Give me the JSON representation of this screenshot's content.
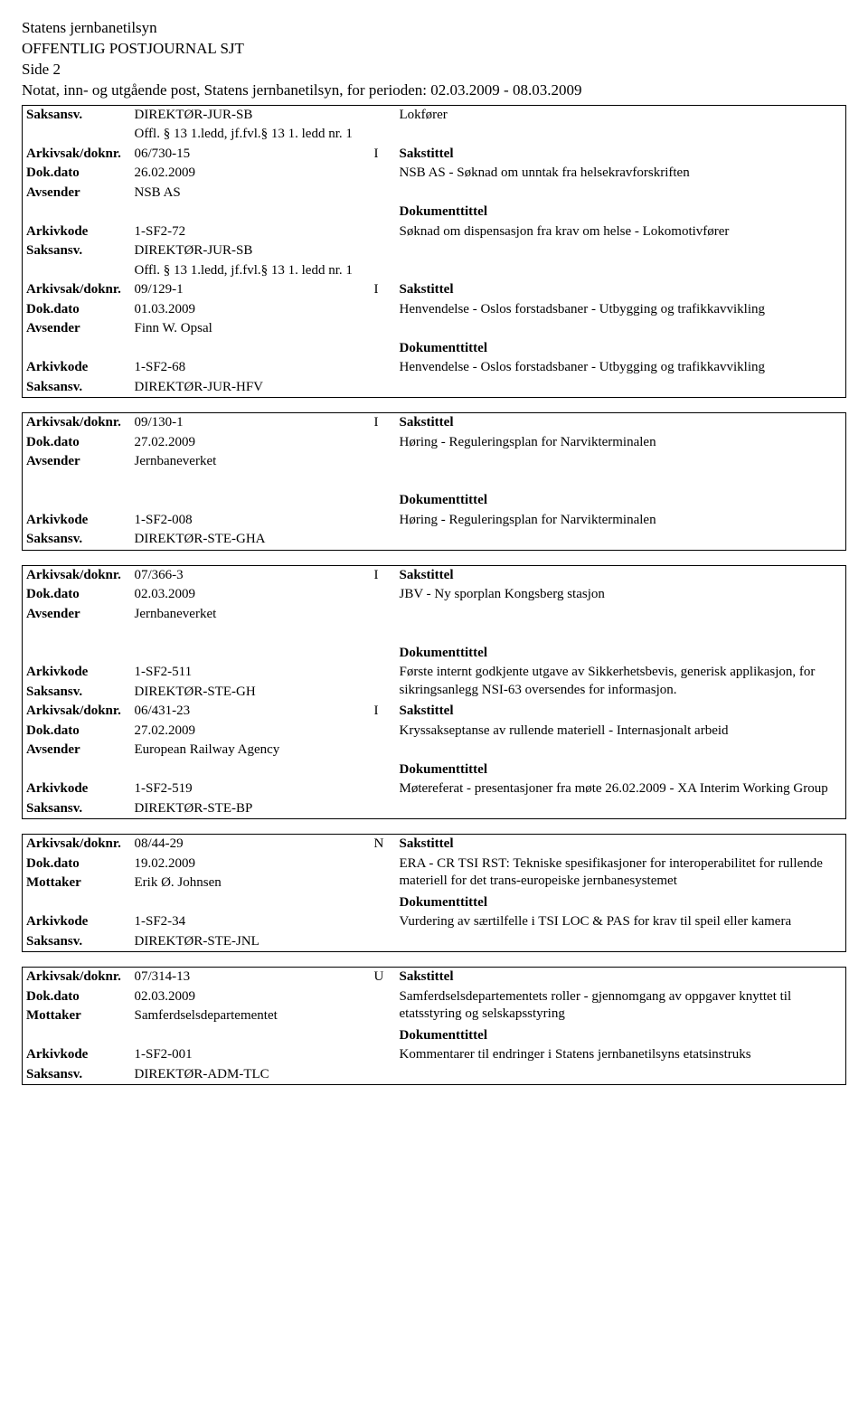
{
  "header": {
    "org": "Statens jernbanetilsyn",
    "journal_title": "OFFENTLIG POSTJOURNAL SJT",
    "page": "Side 2",
    "period_line": "Notat, inn- og utgående post, Statens jernbanetilsyn, for perioden: 02.03.2009 - 08.03.2009"
  },
  "labels": {
    "saksansv": "Saksansv.",
    "arkivsak": "Arkivsak/doknr.",
    "dokdato": "Dok.dato",
    "avsender": "Avsender",
    "mottaker": "Mottaker",
    "arkivkode": "Arkivkode",
    "sakstittel": "Sakstittel",
    "dokumenttittel": "Dokumenttittel"
  },
  "top_entry": {
    "saksansv": "DIREKTØR-JUR-SB",
    "offl": "Offl. § 13 1.ledd, jf.fvl.§ 13 1. ledd nr. 1",
    "role": "Lokfører"
  },
  "records": [
    {
      "arkivsak": "06/730-15",
      "dir": "I",
      "dokdato": "26.02.2009",
      "party_label": "Avsender",
      "party": "NSB AS",
      "arkivkode": "1-SF2-72",
      "saksansv": "DIREKTØR-JUR-SB",
      "saksansv_extra": "Offl. § 13 1.ledd, jf.fvl.§ 13 1. ledd nr. 1",
      "sakstittel": "NSB AS - Søknad om unntak fra helsekravforskriften",
      "doktittel": "Søknad om dispensasjon fra krav om helse - Lokomotivfører",
      "separator_after": true
    },
    {
      "arkivsak": "09/129-1",
      "dir": "I",
      "dokdato": "01.03.2009",
      "party_label": "Avsender",
      "party": "Finn W. Opsal",
      "arkivkode": "1-SF2-68",
      "saksansv": "DIREKTØR-JUR-HFV",
      "sakstittel": "Henvendelse - Oslos forstadsbaner - Utbygging og trafikkavvikling",
      "doktittel": "Henvendelse - Oslos forstadsbaner - Utbygging og trafikkavvikling",
      "gap_after": true
    },
    {
      "arkivsak": "09/130-1",
      "dir": "I",
      "dokdato": "27.02.2009",
      "party_label": "Avsender",
      "party": "Jernbaneverket",
      "arkivkode": "1-SF2-008",
      "saksansv": "DIREKTØR-STE-GHA",
      "sakstittel": "Høring - Reguleringsplan for Narvikterminalen",
      "doktittel": "Høring - Reguleringsplan for Narvikterminalen",
      "blank_after_party": true,
      "gap_after": true
    },
    {
      "arkivsak": "07/366-3",
      "dir": "I",
      "dokdato": "02.03.2009",
      "party_label": "Avsender",
      "party": "Jernbaneverket",
      "arkivkode": "1-SF2-511",
      "saksansv": "DIREKTØR-STE-GH",
      "sakstittel": "JBV - Ny sporplan Kongsberg stasjon",
      "doktittel": "Første internt godkjente utgave av Sikkerhetsbevis, generisk applikasjon, for sikringsanlegg NSI-63 oversendes for informasjon.",
      "blank_after_party": true,
      "separator_after": true
    },
    {
      "arkivsak": "06/431-23",
      "dir": "I",
      "dokdato": "27.02.2009",
      "party_label": "Avsender",
      "party": "European Railway Agency",
      "arkivkode": "1-SF2-519",
      "saksansv": "DIREKTØR-STE-BP",
      "sakstittel": "Kryssakseptanse av rullende materiell - Internasjonalt arbeid",
      "doktittel": "Møtereferat - presentasjoner fra møte 26.02.2009 - XA Interim Working Group",
      "gap_after": true
    },
    {
      "arkivsak": "08/44-29",
      "dir": "N",
      "dokdato": "19.02.2009",
      "party_label": "Mottaker",
      "party": "Erik Ø. Johnsen",
      "arkivkode": "1-SF2-34",
      "saksansv": "DIREKTØR-STE-JNL",
      "sakstittel": "ERA - CR TSI RST: Tekniske spesifikasjoner for interoperabilitet for rullende materiell for det trans-europeiske jernbanesystemet",
      "doktittel": "Vurdering av særtilfelle i TSI LOC & PAS for krav til speil eller kamera",
      "gap_after": true
    },
    {
      "arkivsak": "07/314-13",
      "dir": "U",
      "dokdato": "02.03.2009",
      "party_label": "Mottaker",
      "party": "Samferdselsdepartementet",
      "arkivkode": "1-SF2-001",
      "saksansv": "DIREKTØR-ADM-TLC",
      "sakstittel": "Samferdselsdepartementets roller - gjennomgang av oppgaver knyttet til etatsstyring og selskapsstyring",
      "doktittel": "Kommentarer til endringer i Statens jernbanetilsyns etatsinstruks"
    }
  ]
}
